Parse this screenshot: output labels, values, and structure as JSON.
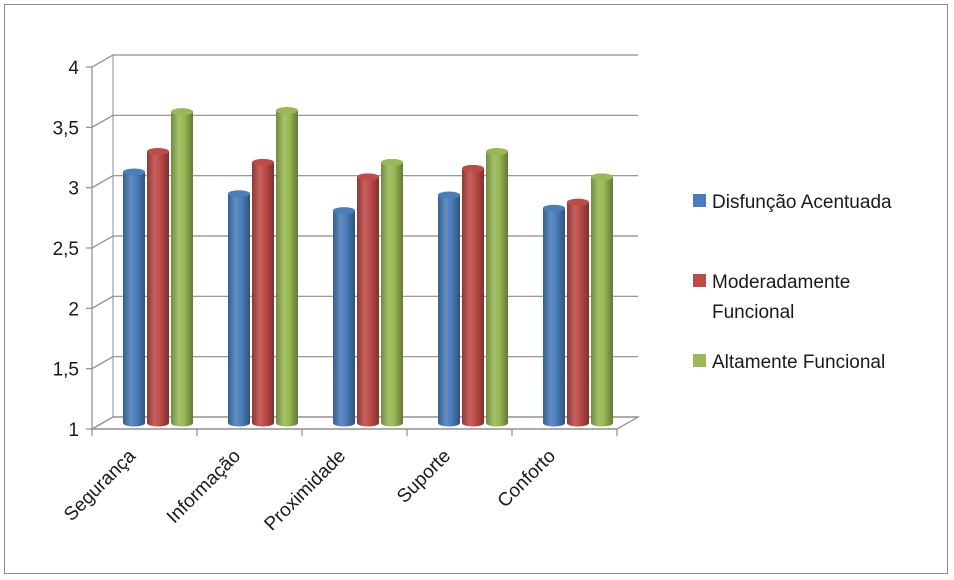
{
  "chart_data": {
    "type": "bar",
    "style": "3d-cylinder",
    "title": "",
    "xlabel": "",
    "ylabel": "",
    "categories": [
      "Segurança",
      "Informação",
      "Proximidade",
      "Suporte",
      "Conforto"
    ],
    "series": [
      {
        "name": "Disfunção Acentuada",
        "color": "#4a7ebb",
        "values": [
          3.08,
          2.9,
          2.76,
          2.89,
          2.78
        ]
      },
      {
        "name": "Moderadamente Funcional",
        "color": "#be4b48",
        "values": [
          3.25,
          3.16,
          3.04,
          3.11,
          2.83
        ]
      },
      {
        "name": "Altamente Funcional",
        "color": "#98b954",
        "values": [
          3.58,
          3.59,
          3.16,
          3.25,
          3.04
        ]
      }
    ],
    "ylim": [
      1,
      4
    ],
    "yticks": [
      1,
      1.5,
      2,
      2.5,
      3,
      3.5,
      4
    ],
    "ytick_labels": [
      "1",
      "1,5",
      "2",
      "2,5",
      "3",
      "3,5",
      "4"
    ],
    "grid": true,
    "legend_position": "right"
  }
}
